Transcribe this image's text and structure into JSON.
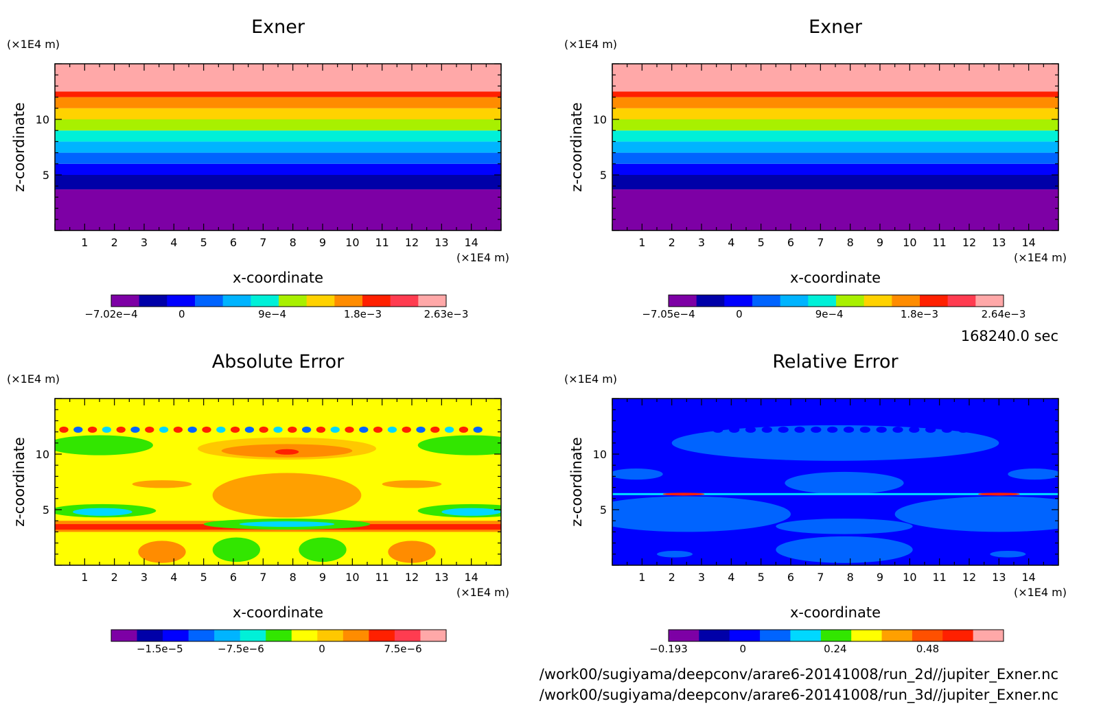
{
  "footer": {
    "time_label": "168240.0 sec",
    "file_2d": "/work00/sugiyama/deepconv/arare6-20141008/run_2d//jupiter_Exner.nc",
    "file_3d": "/work00/sugiyama/deepconv/arare6-20141008/run_3d//jupiter_Exner.nc"
  },
  "chart_data": [
    {
      "type": "heatmap",
      "title": "Exner",
      "xlabel": "x-coordinate",
      "ylabel": "z-coordinate",
      "x_unit": "(×1E4 m)",
      "y_unit": "(×1E4 m)",
      "xlim": [
        0,
        15
      ],
      "ylim": [
        0,
        15
      ],
      "x_ticks": [
        1,
        2,
        3,
        4,
        5,
        6,
        7,
        8,
        9,
        10,
        11,
        12,
        13,
        14
      ],
      "y_ticks": [
        5,
        10
      ],
      "pattern": "horizontal-bands",
      "band_boundaries_z": [
        3.7,
        5.0,
        6.0,
        7.0,
        8.0,
        9.0,
        10.0,
        11.0,
        12.0,
        12.5
      ],
      "band_colors": [
        "#7d00a5",
        "#0000a8",
        "#0000ff",
        "#0064ff",
        "#00b4ff",
        "#00f0d8",
        "#a8f000",
        "#ffd200",
        "#ff8c00",
        "#ff2000",
        "#ffa8a8"
      ],
      "colorbar": {
        "min": -0.000702,
        "max": 0.00263,
        "tick_values": [
          -0.000702,
          0,
          0.0009,
          0.0018,
          0.00263
        ],
        "tick_labels": [
          "−7.02e−4",
          "0",
          "9e−4",
          "1.8e−3",
          "2.63e−3"
        ],
        "colors": [
          "#7d00a5",
          "#0000a8",
          "#0000ff",
          "#0064ff",
          "#00b4ff",
          "#00f0d8",
          "#a8f000",
          "#ffd200",
          "#ff8c00",
          "#ff2000",
          "#ff3c50",
          "#ffa8a8"
        ]
      }
    },
    {
      "type": "heatmap",
      "title": "Exner",
      "xlabel": "x-coordinate",
      "ylabel": "z-coordinate",
      "x_unit": "(×1E4 m)",
      "y_unit": "(×1E4 m)",
      "xlim": [
        0,
        15
      ],
      "ylim": [
        0,
        15
      ],
      "x_ticks": [
        1,
        2,
        3,
        4,
        5,
        6,
        7,
        8,
        9,
        10,
        11,
        12,
        13,
        14
      ],
      "y_ticks": [
        5,
        10
      ],
      "pattern": "horizontal-bands",
      "band_boundaries_z": [
        3.7,
        5.0,
        6.0,
        7.0,
        8.0,
        9.0,
        10.0,
        11.0,
        12.0,
        12.5
      ],
      "band_colors": [
        "#7d00a5",
        "#0000a8",
        "#0000ff",
        "#0064ff",
        "#00b4ff",
        "#00f0d8",
        "#a8f000",
        "#ffd200",
        "#ff8c00",
        "#ff2000",
        "#ffa8a8"
      ],
      "colorbar": {
        "min": -0.000705,
        "max": 0.00264,
        "tick_values": [
          -0.000705,
          0,
          0.0009,
          0.0018,
          0.00264
        ],
        "tick_labels": [
          "−7.05e−4",
          "0",
          "9e−4",
          "1.8e−3",
          "2.64e−3"
        ],
        "colors": [
          "#7d00a5",
          "#0000a8",
          "#0000ff",
          "#0064ff",
          "#00b4ff",
          "#00f0d8",
          "#a8f000",
          "#ffd200",
          "#ff8c00",
          "#ff2000",
          "#ff3c50",
          "#ffa8a8"
        ]
      }
    },
    {
      "type": "heatmap",
      "title": "Absolute Error",
      "xlabel": "x-coordinate",
      "ylabel": "z-coordinate",
      "x_unit": "(×1E4 m)",
      "y_unit": "(×1E4 m)",
      "xlim": [
        0,
        15
      ],
      "ylim": [
        0,
        15
      ],
      "x_ticks": [
        1,
        2,
        3,
        4,
        5,
        6,
        7,
        8,
        9,
        10,
        11,
        12,
        13,
        14
      ],
      "y_ticks": [
        5,
        10
      ],
      "background_color": "#ffff00",
      "features": [
        {
          "shape": "band",
          "z_range": [
            3.0,
            4.0
          ],
          "x_range": [
            0,
            15
          ],
          "color": "#ff8c00"
        },
        {
          "shape": "band",
          "z_range": [
            3.2,
            3.7
          ],
          "x_range": [
            0,
            15
          ],
          "color": "#ff2000"
        },
        {
          "shape": "blob",
          "cx": 7.8,
          "cz": 10.5,
          "rx": 3.0,
          "rz": 1.0,
          "color": "#ffc800"
        },
        {
          "shape": "blob",
          "cx": 7.8,
          "cz": 10.3,
          "rx": 2.2,
          "rz": 0.6,
          "color": "#ff8c00"
        },
        {
          "shape": "blob",
          "cx": 7.8,
          "cz": 10.2,
          "rx": 0.4,
          "rz": 0.25,
          "color": "#ff2000"
        },
        {
          "shape": "blob",
          "cx": 1.5,
          "cz": 10.8,
          "rx": 1.8,
          "rz": 0.9,
          "color": "#32e600"
        },
        {
          "shape": "blob",
          "cx": 14.0,
          "cz": 10.8,
          "rx": 1.8,
          "rz": 0.9,
          "color": "#32e600"
        },
        {
          "shape": "blob",
          "cx": 1.6,
          "cz": 4.9,
          "rx": 1.8,
          "rz": 0.6,
          "color": "#32e600"
        },
        {
          "shape": "blob",
          "cx": 1.6,
          "cz": 4.8,
          "rx": 1.0,
          "rz": 0.35,
          "color": "#00d8ff"
        },
        {
          "shape": "blob",
          "cx": 14.0,
          "cz": 4.9,
          "rx": 1.8,
          "rz": 0.6,
          "color": "#32e600"
        },
        {
          "shape": "blob",
          "cx": 14.0,
          "cz": 4.8,
          "rx": 1.0,
          "rz": 0.35,
          "color": "#00d8ff"
        },
        {
          "shape": "blob",
          "cx": 7.8,
          "cz": 6.3,
          "rx": 2.5,
          "rz": 2.0,
          "color": "#ffa000"
        },
        {
          "shape": "blob",
          "cx": 7.8,
          "cz": 3.7,
          "rx": 2.8,
          "rz": 0.5,
          "color": "#32e600"
        },
        {
          "shape": "blob",
          "cx": 7.8,
          "cz": 3.7,
          "rx": 1.6,
          "rz": 0.25,
          "color": "#00d8ff"
        },
        {
          "shape": "blob",
          "cx": 6.1,
          "cz": 1.4,
          "rx": 0.8,
          "rz": 1.1,
          "color": "#32e600"
        },
        {
          "shape": "blob",
          "cx": 9.0,
          "cz": 1.4,
          "rx": 0.8,
          "rz": 1.1,
          "color": "#32e600"
        },
        {
          "shape": "blob",
          "cx": 3.6,
          "cz": 1.2,
          "rx": 0.8,
          "rz": 1.0,
          "color": "#ff8c00"
        },
        {
          "shape": "blob",
          "cx": 12.0,
          "cz": 1.2,
          "rx": 0.8,
          "rz": 1.0,
          "color": "#ff8c00"
        },
        {
          "shape": "blob",
          "cx": 3.6,
          "cz": 7.3,
          "rx": 1.0,
          "rz": 0.35,
          "color": "#ffa000"
        },
        {
          "shape": "blob",
          "cx": 12.0,
          "cz": 7.3,
          "rx": 1.0,
          "rz": 0.35,
          "color": "#ffa000"
        }
      ],
      "oscillation_row": {
        "z": 12.2,
        "x_from": 0.3,
        "x_to": 14.7,
        "spacing": 0.48,
        "colors": [
          "#ff2000",
          "#0064ff",
          "#ff2000",
          "#00d8ff"
        ]
      },
      "colorbar": {
        "min": -1.95e-05,
        "max": 1.15e-05,
        "tick_values": [
          -1.5e-05,
          -7.5e-06,
          0,
          7.5e-06
        ],
        "tick_labels": [
          "−1.5e−5",
          "−7.5e−6",
          "0",
          "7.5e−6"
        ],
        "colors": [
          "#7d00a5",
          "#0000a8",
          "#0000ff",
          "#0064ff",
          "#00b4ff",
          "#00f0d8",
          "#32e600",
          "#ffff00",
          "#ffc800",
          "#ff8c00",
          "#ff2000",
          "#ff3c50",
          "#ffa8a8"
        ]
      }
    },
    {
      "type": "heatmap",
      "title": "Relative Error",
      "xlabel": "x-coordinate",
      "ylabel": "z-coordinate",
      "x_unit": "(×1E4 m)",
      "y_unit": "(×1E4 m)",
      "xlim": [
        0,
        15
      ],
      "ylim": [
        0,
        15
      ],
      "x_ticks": [
        1,
        2,
        3,
        4,
        5,
        6,
        7,
        8,
        9,
        10,
        11,
        12,
        13,
        14
      ],
      "y_ticks": [
        5,
        10
      ],
      "background_color": "#0000ff",
      "features": [
        {
          "shape": "blob",
          "cx": 7.5,
          "cz": 11.0,
          "rx": 5.5,
          "rz": 1.6,
          "color": "#0064ff"
        },
        {
          "shape": "blob",
          "cx": 7.8,
          "cz": 7.4,
          "rx": 2.0,
          "rz": 1.0,
          "color": "#0064ff"
        },
        {
          "shape": "blob",
          "cx": 2.5,
          "cz": 4.6,
          "rx": 3.5,
          "rz": 1.6,
          "color": "#0064ff"
        },
        {
          "shape": "blob",
          "cx": 13.0,
          "cz": 4.6,
          "rx": 3.5,
          "rz": 1.6,
          "color": "#0064ff"
        },
        {
          "shape": "blob",
          "cx": 7.8,
          "cz": 3.5,
          "rx": 2.3,
          "rz": 0.7,
          "color": "#0064ff"
        },
        {
          "shape": "blob",
          "cx": 7.8,
          "cz": 1.4,
          "rx": 2.3,
          "rz": 1.2,
          "color": "#0064ff"
        },
        {
          "shape": "blob",
          "cx": 2.1,
          "cz": 1.0,
          "rx": 0.6,
          "rz": 0.3,
          "color": "#0064ff"
        },
        {
          "shape": "blob",
          "cx": 13.3,
          "cz": 1.0,
          "rx": 0.6,
          "rz": 0.3,
          "color": "#0064ff"
        },
        {
          "shape": "blob",
          "cx": 0.8,
          "cz": 8.2,
          "rx": 0.9,
          "rz": 0.5,
          "color": "#0064ff"
        },
        {
          "shape": "blob",
          "cx": 14.2,
          "cz": 8.2,
          "rx": 0.9,
          "rz": 0.5,
          "color": "#0064ff"
        }
      ],
      "oscillation_row": {
        "z": 12.2,
        "x_from": 3.0,
        "x_to": 12.0,
        "spacing": 0.55,
        "colors": [
          "#0000ff"
        ]
      },
      "sharp_line": {
        "z": 6.4,
        "color": "#00e0ff",
        "highlights": [
          {
            "cx": 2.4,
            "color": "#ff2000"
          },
          {
            "cx": 13.0,
            "color": "#ff2000"
          }
        ]
      },
      "colorbar": {
        "min": -0.193,
        "max": 0.677,
        "tick_values": [
          -0.193,
          0,
          0.24,
          0.48
        ],
        "tick_labels": [
          "−0.193",
          "0",
          "0.24",
          "0.48"
        ],
        "colors": [
          "#7d00a5",
          "#0000a8",
          "#0000ff",
          "#0064ff",
          "#00d8ff",
          "#32e600",
          "#ffff00",
          "#ffa000",
          "#ff5000",
          "#ff2000",
          "#ffa8a8"
        ]
      }
    }
  ]
}
